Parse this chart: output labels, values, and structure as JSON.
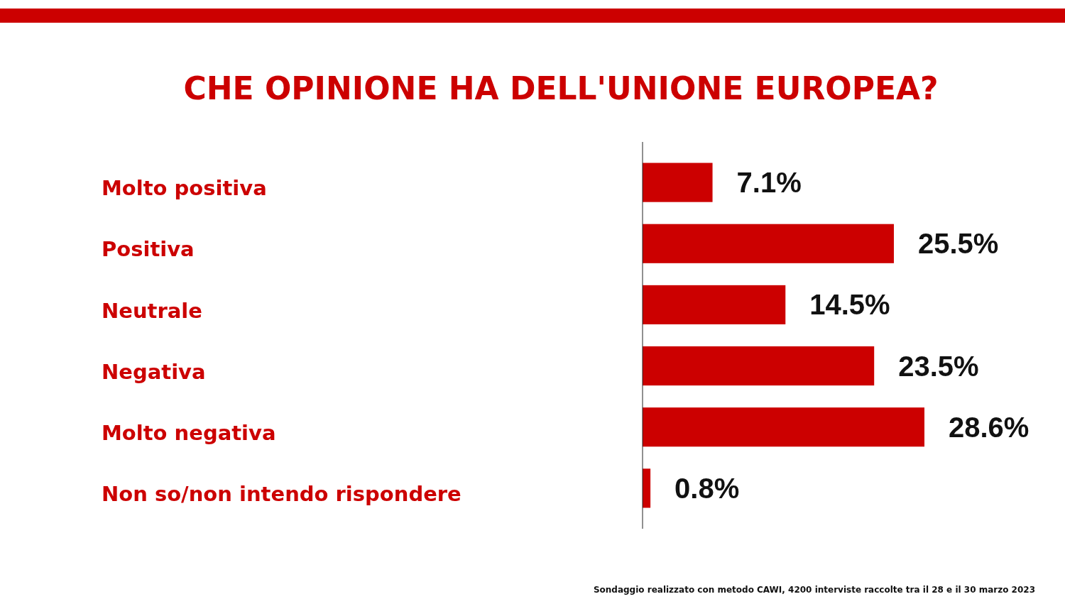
{
  "chart_data": {
    "type": "bar",
    "orientation": "horizontal",
    "title": "CHE OPINIONE HA DELL'UNIONE EUROPEA?",
    "categories": [
      "Molto positiva",
      "Positiva",
      "Neutrale",
      "Negativa",
      "Molto negativa",
      "Non so/non intendo rispondere"
    ],
    "values": [
      7.1,
      25.5,
      14.5,
      23.5,
      28.6,
      0.8
    ],
    "value_labels": [
      "7.1%",
      "25.5%",
      "14.5%",
      "23.5%",
      "28.6%",
      "0.8%"
    ],
    "color": "#cc0000",
    "tick_labels": "y",
    "annotations": [
      "Sondaggio realizzato con metodo CAWI, 4200 interviste raccolte tra il 28 e il 30 marzo 2023"
    ]
  }
}
